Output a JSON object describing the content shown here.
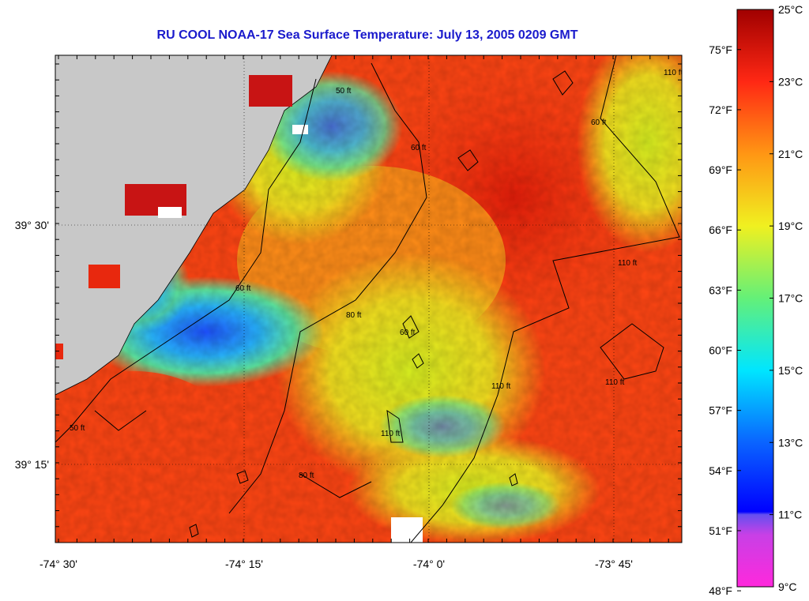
{
  "title": "RU COOL  NOAA-17  Sea Surface Temperature:  July 13, 2005 0209 GMT",
  "axes": {
    "x_ticks": [
      "-74° 30'",
      "-74° 15'",
      "-74° 0'",
      "-73° 45'"
    ],
    "y_ticks": [
      "39° 30'",
      "39° 15'"
    ]
  },
  "colorbar": {
    "fahrenheit_labels": [
      "75°F",
      "72°F",
      "69°F",
      "66°F",
      "63°F",
      "60°F",
      "57°F",
      "54°F",
      "51°F",
      "48°F"
    ],
    "celsius_labels": [
      "25°C",
      "23°C",
      "21°C",
      "19°C",
      "17°C",
      "15°C",
      "13°C",
      "11°C",
      "9°C"
    ],
    "range_c": [
      9,
      25
    ]
  },
  "contours": {
    "labels": [
      "50 ft",
      "60 ft",
      "80 ft",
      "110 ft"
    ]
  },
  "colors": {
    "land": "#c8c8c8",
    "title": "#1a1acc",
    "warm": "#ff3c14",
    "cold": "#1e64ff"
  }
}
